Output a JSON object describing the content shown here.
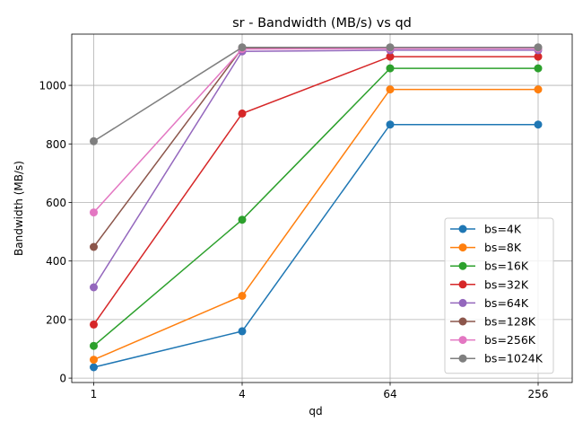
{
  "chart_data": {
    "type": "line",
    "title": "sr - Bandwidth (MB/s) vs qd",
    "xlabel": "qd",
    "ylabel": "Bandwidth (MB/s)",
    "categories": [
      "1",
      "4",
      "64",
      "256"
    ],
    "y_ticks": [
      0,
      200,
      400,
      600,
      800,
      1000
    ],
    "ylim": [
      -15,
      1175
    ],
    "grid": true,
    "legend_position": "lower-right",
    "series": [
      {
        "name": "bs=4K",
        "color": "#1f77b4",
        "values": [
          37,
          160,
          866,
          866
        ]
      },
      {
        "name": "bs=8K",
        "color": "#ff7f0e",
        "values": [
          63,
          281,
          986,
          986
        ]
      },
      {
        "name": "bs=16K",
        "color": "#2ca02c",
        "values": [
          110,
          541,
          1058,
          1058
        ]
      },
      {
        "name": "bs=32K",
        "color": "#d62728",
        "values": [
          183,
          904,
          1098,
          1098
        ]
      },
      {
        "name": "bs=64K",
        "color": "#9467bd",
        "values": [
          310,
          1116,
          1120,
          1120
        ]
      },
      {
        "name": "bs=128K",
        "color": "#8c564b",
        "values": [
          448,
          1127,
          1128,
          1128
        ]
      },
      {
        "name": "bs=256K",
        "color": "#e377c2",
        "values": [
          566,
          1124,
          1126,
          1126
        ]
      },
      {
        "name": "bs=1024K",
        "color": "#7f7f7f",
        "values": [
          809,
          1130,
          1130,
          1130
        ]
      }
    ]
  }
}
